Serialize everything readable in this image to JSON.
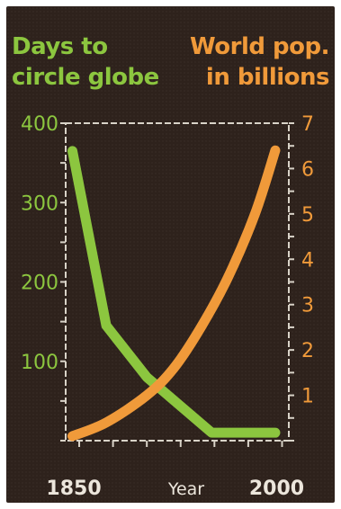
{
  "chart_data": {
    "type": "line",
    "left_axis_title": [
      "Days to",
      "circle globe"
    ],
    "right_axis_title": [
      "World pop.",
      "in billions"
    ],
    "xlabel": "Year",
    "x_tick_labels": [
      "1850",
      "2000"
    ],
    "xlim": [
      1840,
      2005
    ],
    "left_ylim": [
      0,
      400
    ],
    "left_yticks": [
      "100",
      "200",
      "300",
      "400"
    ],
    "right_ylim": [
      0,
      7
    ],
    "right_yticks": [
      "1",
      "2",
      "3",
      "4",
      "5",
      "6",
      "7"
    ],
    "grid": false,
    "series": [
      {
        "axis": "left",
        "color": "#8cc63f",
        "x": [
          1845,
          1870,
          1900,
          1948,
          1960,
          1990,
          1995
        ],
        "y": [
          365,
          145,
          80,
          10,
          10,
          10,
          10
        ]
      },
      {
        "axis": "right",
        "color": "#f09a3a",
        "x": [
          1845,
          1870,
          1900,
          1920,
          1940,
          1960,
          1980,
          1995
        ],
        "y": [
          0.1,
          0.4,
          1.0,
          1.6,
          2.5,
          3.6,
          5.0,
          6.4
        ]
      }
    ]
  }
}
